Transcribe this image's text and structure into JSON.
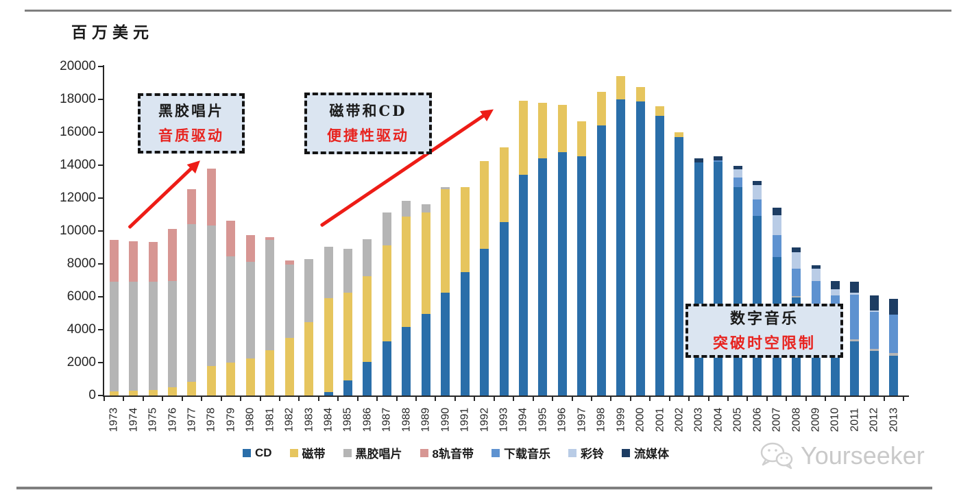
{
  "page": {
    "watermark": "Yourseeker"
  },
  "chart_data": {
    "type": "bar",
    "stacked": true,
    "title": "",
    "unit_label": "百万美元",
    "xlabel": "",
    "ylabel": "百万美元",
    "ylim": [
      0,
      20000
    ],
    "grid": false,
    "legend_position": "bottom",
    "ytick_labels": [
      "0",
      "2000",
      "4000",
      "6000",
      "8000",
      "10000",
      "12000",
      "14000",
      "16000",
      "18000",
      "20000"
    ],
    "categories": [
      "1973",
      "1974",
      "1975",
      "1976",
      "1977",
      "1978",
      "1979",
      "1980",
      "1981",
      "1982",
      "1983",
      "1984",
      "1985",
      "1986",
      "1987",
      "1988",
      "1989",
      "1990",
      "1991",
      "1992",
      "1993",
      "1994",
      "1995",
      "1996",
      "1997",
      "1998",
      "1999",
      "2000",
      "2001",
      "2002",
      "2003",
      "2004",
      "2005",
      "2006",
      "2007",
      "2008",
      "2009",
      "2010",
      "2011",
      "2012",
      "2013"
    ],
    "series": [
      {
        "name": "CD",
        "color": "#2a6ea9",
        "values": [
          0,
          0,
          0,
          0,
          0,
          0,
          0,
          0,
          0,
          0,
          0,
          220,
          920,
          2030,
          3280,
          4150,
          4950,
          6240,
          7510,
          8930,
          10530,
          13420,
          14400,
          14800,
          14550,
          16400,
          18000,
          17890,
          17000,
          15700,
          14150,
          14200,
          12650,
          10900,
          8420,
          5950,
          4680,
          3650,
          3300,
          2700,
          2400
        ]
      },
      {
        "name": "磁带",
        "color": "#e6c55e",
        "values": [
          250,
          310,
          350,
          490,
          850,
          1780,
          2000,
          2240,
          2760,
          3510,
          4460,
          5700,
          5350,
          5200,
          5830,
          6720,
          6180,
          6310,
          5140,
          5320,
          4570,
          4480,
          3400,
          2850,
          2100,
          2050,
          1400,
          860,
          600,
          320,
          0,
          0,
          0,
          0,
          0,
          0,
          0,
          0,
          0,
          0,
          0
        ]
      },
      {
        "name": "黑胶唱片",
        "color": "#b5b5b5",
        "values": [
          6650,
          6590,
          6580,
          6480,
          9570,
          8570,
          6450,
          5900,
          6700,
          4450,
          3840,
          3120,
          2660,
          2270,
          2010,
          970,
          490,
          100,
          0,
          0,
          0,
          0,
          0,
          0,
          0,
          0,
          0,
          0,
          0,
          0,
          0,
          0,
          0,
          0,
          0,
          80,
          90,
          100,
          120,
          150,
          170
        ]
      },
      {
        "name": "8轨音带",
        "color": "#d79693",
        "values": [
          2550,
          2470,
          2400,
          3140,
          2110,
          3450,
          2180,
          1600,
          180,
          250,
          0,
          0,
          0,
          0,
          0,
          0,
          0,
          0,
          0,
          0,
          0,
          0,
          0,
          0,
          0,
          0,
          0,
          0,
          0,
          0,
          0,
          0,
          0,
          0,
          0,
          0,
          0,
          0,
          0,
          0,
          0
        ]
      },
      {
        "name": "下载音乐",
        "color": "#5e92d0",
        "values": [
          0,
          0,
          0,
          0,
          0,
          0,
          0,
          0,
          0,
          0,
          0,
          0,
          0,
          0,
          0,
          0,
          0,
          0,
          0,
          0,
          0,
          0,
          0,
          0,
          0,
          0,
          0,
          0,
          0,
          0,
          0,
          100,
          600,
          1000,
          1350,
          1700,
          2210,
          2350,
          2700,
          2250,
          2350
        ]
      },
      {
        "name": "彩铃",
        "color": "#b9cce6",
        "values": [
          0,
          0,
          0,
          0,
          0,
          0,
          0,
          0,
          0,
          0,
          0,
          0,
          0,
          0,
          0,
          0,
          0,
          0,
          0,
          0,
          0,
          0,
          0,
          0,
          0,
          0,
          0,
          0,
          0,
          0,
          0,
          0,
          500,
          900,
          1200,
          970,
          750,
          370,
          150,
          50,
          0
        ]
      },
      {
        "name": "流媒体",
        "color": "#1d3d63",
        "values": [
          0,
          0,
          0,
          0,
          0,
          0,
          0,
          0,
          0,
          0,
          0,
          0,
          0,
          0,
          0,
          0,
          0,
          0,
          0,
          0,
          0,
          0,
          0,
          0,
          0,
          0,
          0,
          0,
          0,
          0,
          250,
          250,
          200,
          250,
          430,
          300,
          200,
          490,
          630,
          950,
          950
        ]
      }
    ],
    "annotations": [
      {
        "line1": "黑胶唱片",
        "line2": "音质驱动"
      },
      {
        "line1": "磁带和CD",
        "line2": "便捷性驱动"
      },
      {
        "line1": "数字音乐",
        "line2": "突破时空限制"
      }
    ]
  }
}
